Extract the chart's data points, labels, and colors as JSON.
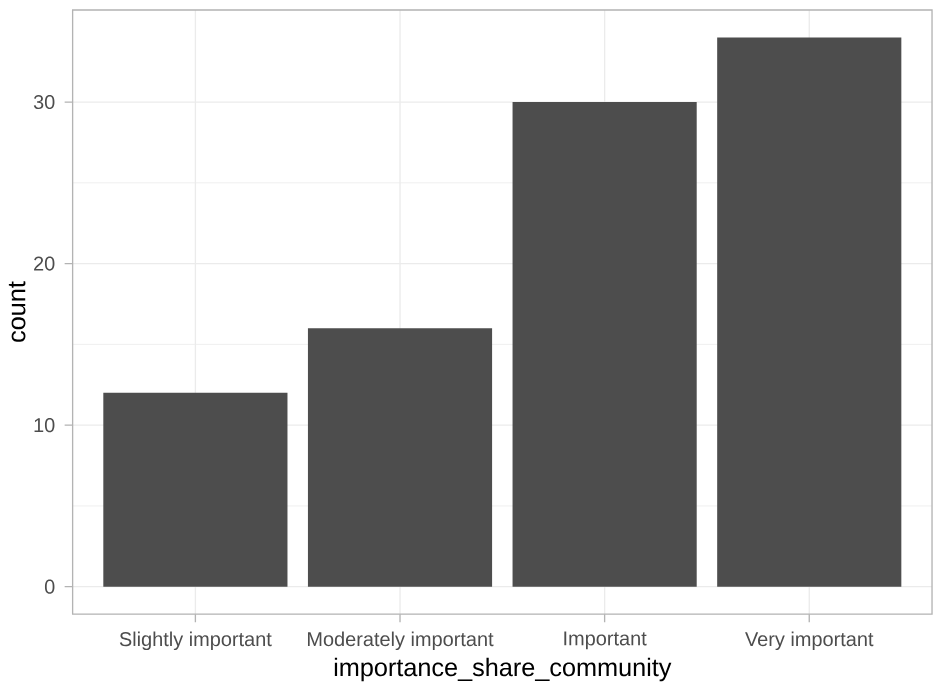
{
  "chart_data": {
    "type": "bar",
    "xlabel": "importance_share_community",
    "ylabel": "count",
    "categories": [
      "Slightly important",
      "Moderately important",
      "Important",
      "Very important"
    ],
    "values": [
      12,
      16,
      30,
      34
    ],
    "color": "#4d4d4d",
    "ylim": [
      -1.7,
      35.7
    ],
    "yticks": [
      0,
      10,
      20,
      30
    ],
    "grid": true
  }
}
